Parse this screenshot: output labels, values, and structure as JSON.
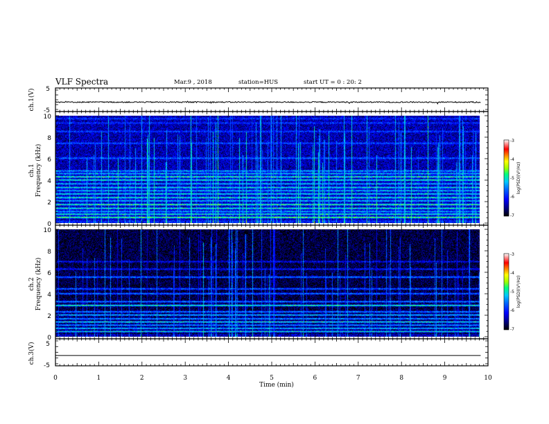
{
  "header": {
    "title": "VLF Spectra",
    "date": "Mar.9 , 2018",
    "station": "station=HUS",
    "start_ut": "start UT = 0 : 20: 2"
  },
  "colors": {
    "frame": "#000000",
    "background": "#ffffff",
    "colormap": [
      "#000000",
      "#00007a",
      "#0000ff",
      "#0066ff",
      "#00c8ff",
      "#00ff7f",
      "#a0ff00",
      "#ffff00",
      "#ff8000",
      "#ff0000",
      "#ffffff"
    ]
  },
  "chart_data": [
    {
      "type": "line",
      "name": "ch1-waveform",
      "ylabel": "ch.1(V)",
      "ylim": [
        -5,
        5
      ],
      "yticks": [
        "5",
        "-5"
      ],
      "xlim": [
        0,
        10
      ],
      "baseline_v": -1.0,
      "noise_amplitude_v": 0.25
    },
    {
      "type": "heatmap",
      "name": "ch1-spectrogram",
      "ylabel": "ch.1 Frequency (kHz)",
      "ylabel_line1": "ch.1",
      "ylabel_line2": "Frequency (kHz)",
      "xlim": [
        0,
        9.83
      ],
      "ylim": [
        0,
        10
      ],
      "yticks": [
        "0",
        "2",
        "4",
        "6",
        "8",
        "10"
      ],
      "background_log_psd": -6.4,
      "band_lines_khz": [
        {
          "f": 0.5,
          "level": -4.6
        },
        {
          "f": 0.8,
          "level": -4.9
        },
        {
          "f": 1.05,
          "level": -5.3
        },
        {
          "f": 1.35,
          "level": -4.9
        },
        {
          "f": 1.7,
          "level": -4.7
        },
        {
          "f": 2.05,
          "level": -5.2
        },
        {
          "f": 2.35,
          "level": -4.9
        },
        {
          "f": 2.7,
          "level": -5.0
        },
        {
          "f": 3.0,
          "level": -5.2
        },
        {
          "f": 3.3,
          "level": -5.0
        },
        {
          "f": 3.65,
          "level": -5.2
        },
        {
          "f": 4.0,
          "level": -4.9
        },
        {
          "f": 4.3,
          "level": -4.8
        },
        {
          "f": 4.6,
          "level": -5.2
        },
        {
          "f": 4.85,
          "level": -5.3
        },
        {
          "f": 6.05,
          "level": -5.6
        },
        {
          "f": 7.45,
          "level": -5.7
        },
        {
          "f": 8.55,
          "level": -5.8
        },
        {
          "f": 9.35,
          "level": -5.9
        },
        {
          "f": 9.75,
          "level": -5.9
        }
      ],
      "impulse_density": 0.55
    },
    {
      "type": "heatmap",
      "name": "ch2-spectrogram",
      "ylabel": "ch.2 Frequency (kHz)",
      "ylabel_line1": "ch.2",
      "ylabel_line2": "Frequency (kHz)",
      "xlim": [
        0,
        9.83
      ],
      "ylim": [
        0,
        10
      ],
      "yticks": [
        "0",
        "2",
        "4",
        "6",
        "8",
        "10"
      ],
      "background_log_psd": -6.8,
      "band_lines_khz": [
        {
          "f": 0.45,
          "level": -5.0
        },
        {
          "f": 0.75,
          "level": -5.1
        },
        {
          "f": 1.05,
          "level": -5.3
        },
        {
          "f": 1.35,
          "level": -4.9
        },
        {
          "f": 1.65,
          "level": -5.3
        },
        {
          "f": 2.0,
          "level": -5.1
        },
        {
          "f": 2.3,
          "level": -5.4
        },
        {
          "f": 2.9,
          "level": -4.8
        },
        {
          "f": 3.25,
          "level": -5.4
        },
        {
          "f": 4.0,
          "level": -5.5
        },
        {
          "f": 4.45,
          "level": -5.6
        },
        {
          "f": 5.55,
          "level": -5.5
        },
        {
          "f": 6.3,
          "level": -6.0
        },
        {
          "f": 7.0,
          "level": -6.1
        }
      ],
      "impulse_density": 0.45
    },
    {
      "type": "line",
      "name": "ch3-waveform",
      "ylabel": "ch.3(V)",
      "ylim": [
        -5,
        5
      ],
      "yticks": [
        "5",
        "-5"
      ],
      "xlim": [
        0,
        10
      ],
      "baseline_v": -1.2,
      "noise_amplitude_v": 0.0
    }
  ],
  "x_axis": {
    "label": "Time (min)",
    "range": [
      0,
      10
    ],
    "ticks": [
      "0",
      "1",
      "2",
      "3",
      "4",
      "5",
      "6",
      "7",
      "8",
      "9",
      "10"
    ]
  },
  "colorbars": [
    {
      "name": "ch1-colorbar",
      "label": "log(PSD)(V²/Hz)",
      "range": [
        -7,
        -3
      ],
      "ticks": [
        "-3",
        "-4",
        "-5",
        "-6",
        "-7"
      ]
    },
    {
      "name": "ch2-colorbar",
      "label": "log(PSD)(V²/Hz)",
      "range": [
        -7,
        -3
      ],
      "ticks": [
        "-3",
        "-4",
        "-5",
        "-6",
        "-7"
      ]
    }
  ]
}
